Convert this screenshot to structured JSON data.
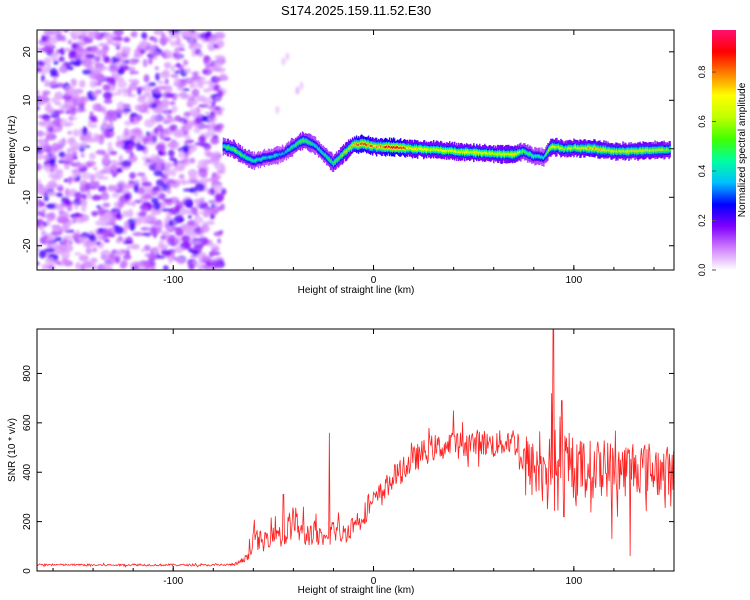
{
  "title": "S174.2025.159.11.52.E30",
  "chart_data": [
    {
      "type": "heatmap",
      "xlabel": "Height of straight line (km)",
      "ylabel": "Frequency (Hz)",
      "xlim": [
        -168,
        150
      ],
      "ylim": [
        -25,
        24.5
      ],
      "xticks": [
        -100,
        0,
        100
      ],
      "yticks": [
        -20,
        -10,
        0,
        10,
        20
      ],
      "grid": false,
      "colorbar": {
        "label": "Normalized spectral amplitude",
        "range": [
          0,
          0.97
        ],
        "ticks": [
          0.0,
          0.2,
          0.4,
          0.6,
          0.8
        ],
        "tick_labels": [
          "0.0",
          "0.2",
          "0.4",
          "0.6",
          "0.8"
        ],
        "colormap": [
          "#ffffff",
          "#d080ff",
          "#8000ff",
          "#0000ff",
          "#00c0ff",
          "#00ffa0",
          "#40ff00",
          "#c0ff00",
          "#ffff00",
          "#ff8000",
          "#ff0000",
          "#ff1070"
        ]
      },
      "noise_region_x": [
        -168,
        -75
      ],
      "ridge": {
        "description_points_x": [
          -75,
          -70,
          -65,
          -60,
          -55,
          -50,
          -45,
          -40,
          -35,
          -30,
          -25,
          -20,
          -15,
          -10,
          -5,
          0,
          10,
          20,
          30,
          40,
          50,
          60,
          70,
          75,
          80,
          85,
          88,
          90,
          95,
          100,
          110,
          120,
          130,
          140,
          148
        ],
        "frequency_hz": [
          0.5,
          0.0,
          -1.5,
          -2.5,
          -2.0,
          -1.5,
          -1.0,
          0.5,
          1.8,
          1.0,
          -1.0,
          -3.0,
          -1.0,
          0.8,
          1.0,
          0.5,
          0.3,
          0.0,
          -0.2,
          -0.5,
          -0.8,
          -1.0,
          -1.2,
          -0.5,
          -1.5,
          -1.8,
          0.0,
          0.5,
          0.0,
          0.2,
          0.0,
          -0.5,
          -0.5,
          -0.3,
          -0.2
        ],
        "peak_amplitude": [
          0.5,
          0.6,
          0.55,
          0.5,
          0.45,
          0.45,
          0.4,
          0.5,
          0.6,
          0.45,
          0.5,
          0.55,
          0.65,
          0.8,
          0.95,
          0.8,
          0.95,
          0.75,
          0.7,
          0.7,
          0.75,
          0.7,
          0.75,
          0.55,
          0.5,
          0.45,
          0.7,
          0.7,
          0.65,
          0.7,
          0.8,
          0.7,
          0.75,
          0.7,
          0.65
        ]
      }
    },
    {
      "type": "line",
      "xlabel": "Height of straight line (km)",
      "ylabel": "SNR (10 * v/v)",
      "xlim": [
        -168,
        150
      ],
      "ylim": [
        0,
        980
      ],
      "xticks": [
        -100,
        0,
        100
      ],
      "yticks": [
        0,
        200,
        400,
        600,
        800
      ],
      "grid": false,
      "series": [
        {
          "color": "#ff2020",
          "x": [
            -168,
            -160,
            -150,
            -140,
            -130,
            -120,
            -110,
            -100,
            -90,
            -80,
            -70,
            -65,
            -62,
            -60,
            -55,
            -50,
            -45,
            -40,
            -35,
            -30,
            -25,
            -20,
            -15,
            -10,
            -5,
            0,
            5,
            10,
            15,
            20,
            25,
            30,
            35,
            40,
            45,
            50,
            55,
            60,
            65,
            70,
            73,
            75,
            80,
            85,
            88,
            90,
            92,
            95,
            100,
            105,
            110,
            115,
            120,
            125,
            130,
            135,
            140,
            145,
            150
          ],
          "y": [
            25,
            25,
            25,
            24,
            24,
            25,
            24,
            25,
            24,
            24,
            26,
            40,
            60,
            140,
            110,
            180,
            130,
            210,
            140,
            160,
            110,
            170,
            150,
            190,
            230,
            280,
            330,
            380,
            410,
            450,
            480,
            500,
            500,
            510,
            515,
            520,
            520,
            510,
            520,
            530,
            500,
            430,
            410,
            420,
            420,
            440,
            420,
            420,
            410,
            420,
            410,
            420,
            410,
            410,
            430,
            420,
            410,
            400,
            400
          ],
          "noise": [
            4,
            4,
            4,
            4,
            4,
            4,
            4,
            4,
            4,
            4,
            5,
            10,
            15,
            40,
            45,
            60,
            55,
            70,
            50,
            55,
            40,
            55,
            45,
            45,
            45,
            45,
            45,
            50,
            50,
            55,
            55,
            55,
            50,
            55,
            55,
            55,
            55,
            55,
            55,
            55,
            80,
            120,
            120,
            125,
            125,
            125,
            125,
            125,
            120,
            120,
            120,
            120,
            115,
            115,
            115,
            110,
            110,
            110,
            110
          ],
          "peaks": [
            [
              -62,
              130
            ],
            [
              -45,
              310
            ],
            [
              -35,
              260
            ],
            [
              -22,
              560
            ],
            [
              89.8,
              980
            ],
            [
              89,
              720
            ],
            [
              94,
              690
            ],
            [
              95,
              220
            ],
            [
              119,
              130
            ],
            [
              128,
              60
            ],
            [
              40,
              650
            ]
          ]
        }
      ]
    }
  ]
}
